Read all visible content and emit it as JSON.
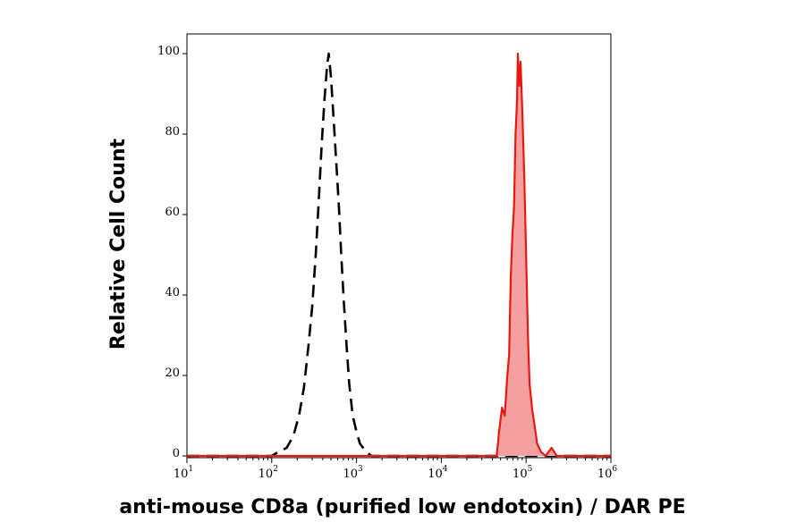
{
  "chart_data": {
    "type": "area",
    "xlabel": "anti-mouse CD8a (purified low endotoxin) / DAR PE",
    "ylabel": "Relative Cell Count",
    "x_scale": "log",
    "xlim": [
      10,
      1000000
    ],
    "ylim": [
      0,
      100
    ],
    "x_ticks": [
      {
        "value": 10,
        "base": "10",
        "exp": "1"
      },
      {
        "value": 100,
        "base": "10",
        "exp": "2"
      },
      {
        "value": 1000,
        "base": "10",
        "exp": "3"
      },
      {
        "value": 10000,
        "base": "10",
        "exp": "4"
      },
      {
        "value": 100000,
        "base": "10",
        "exp": "5"
      },
      {
        "value": 1000000,
        "base": "10",
        "exp": "6"
      }
    ],
    "y_ticks": [
      {
        "value": 0,
        "label": "0"
      },
      {
        "value": 20,
        "label": "20"
      },
      {
        "value": 40,
        "label": "40"
      },
      {
        "value": 60,
        "label": "60"
      },
      {
        "value": 80,
        "label": "80"
      },
      {
        "value": 100,
        "label": "100"
      }
    ],
    "grid": false,
    "series": [
      {
        "style": "dashed-line",
        "color": "#000000",
        "points": [
          [
            10,
            0
          ],
          [
            100,
            0
          ],
          [
            120,
            1
          ],
          [
            150,
            2
          ],
          [
            180,
            5
          ],
          [
            210,
            10
          ],
          [
            240,
            17
          ],
          [
            270,
            27
          ],
          [
            300,
            37
          ],
          [
            330,
            50
          ],
          [
            360,
            64
          ],
          [
            390,
            78
          ],
          [
            420,
            89
          ],
          [
            450,
            97
          ],
          [
            470,
            100
          ],
          [
            500,
            94
          ],
          [
            540,
            83
          ],
          [
            580,
            72
          ],
          [
            620,
            62
          ],
          [
            660,
            50
          ],
          [
            710,
            38
          ],
          [
            760,
            28
          ],
          [
            820,
            18
          ],
          [
            900,
            10
          ],
          [
            1000,
            6
          ],
          [
            1100,
            3
          ],
          [
            1300,
            1
          ],
          [
            1500,
            0
          ],
          [
            1000000,
            0
          ]
        ]
      },
      {
        "style": "filled",
        "color": "#e8170f",
        "fill": "#f4a0a0",
        "points": [
          [
            10,
            0
          ],
          [
            45000,
            0
          ],
          [
            48000,
            6
          ],
          [
            52000,
            12
          ],
          [
            56000,
            10
          ],
          [
            60000,
            20
          ],
          [
            63000,
            25
          ],
          [
            66000,
            45
          ],
          [
            69000,
            55
          ],
          [
            72000,
            62
          ],
          [
            75000,
            80
          ],
          [
            78000,
            88
          ],
          [
            80000,
            100
          ],
          [
            83000,
            92
          ],
          [
            86000,
            98
          ],
          [
            90000,
            86
          ],
          [
            95000,
            70
          ],
          [
            100000,
            50
          ],
          [
            105000,
            30
          ],
          [
            110000,
            18
          ],
          [
            117000,
            12
          ],
          [
            125000,
            8
          ],
          [
            135000,
            3
          ],
          [
            150000,
            1
          ],
          [
            170000,
            0
          ],
          [
            200000,
            2
          ],
          [
            230000,
            0
          ],
          [
            1000000,
            0
          ]
        ]
      }
    ]
  }
}
